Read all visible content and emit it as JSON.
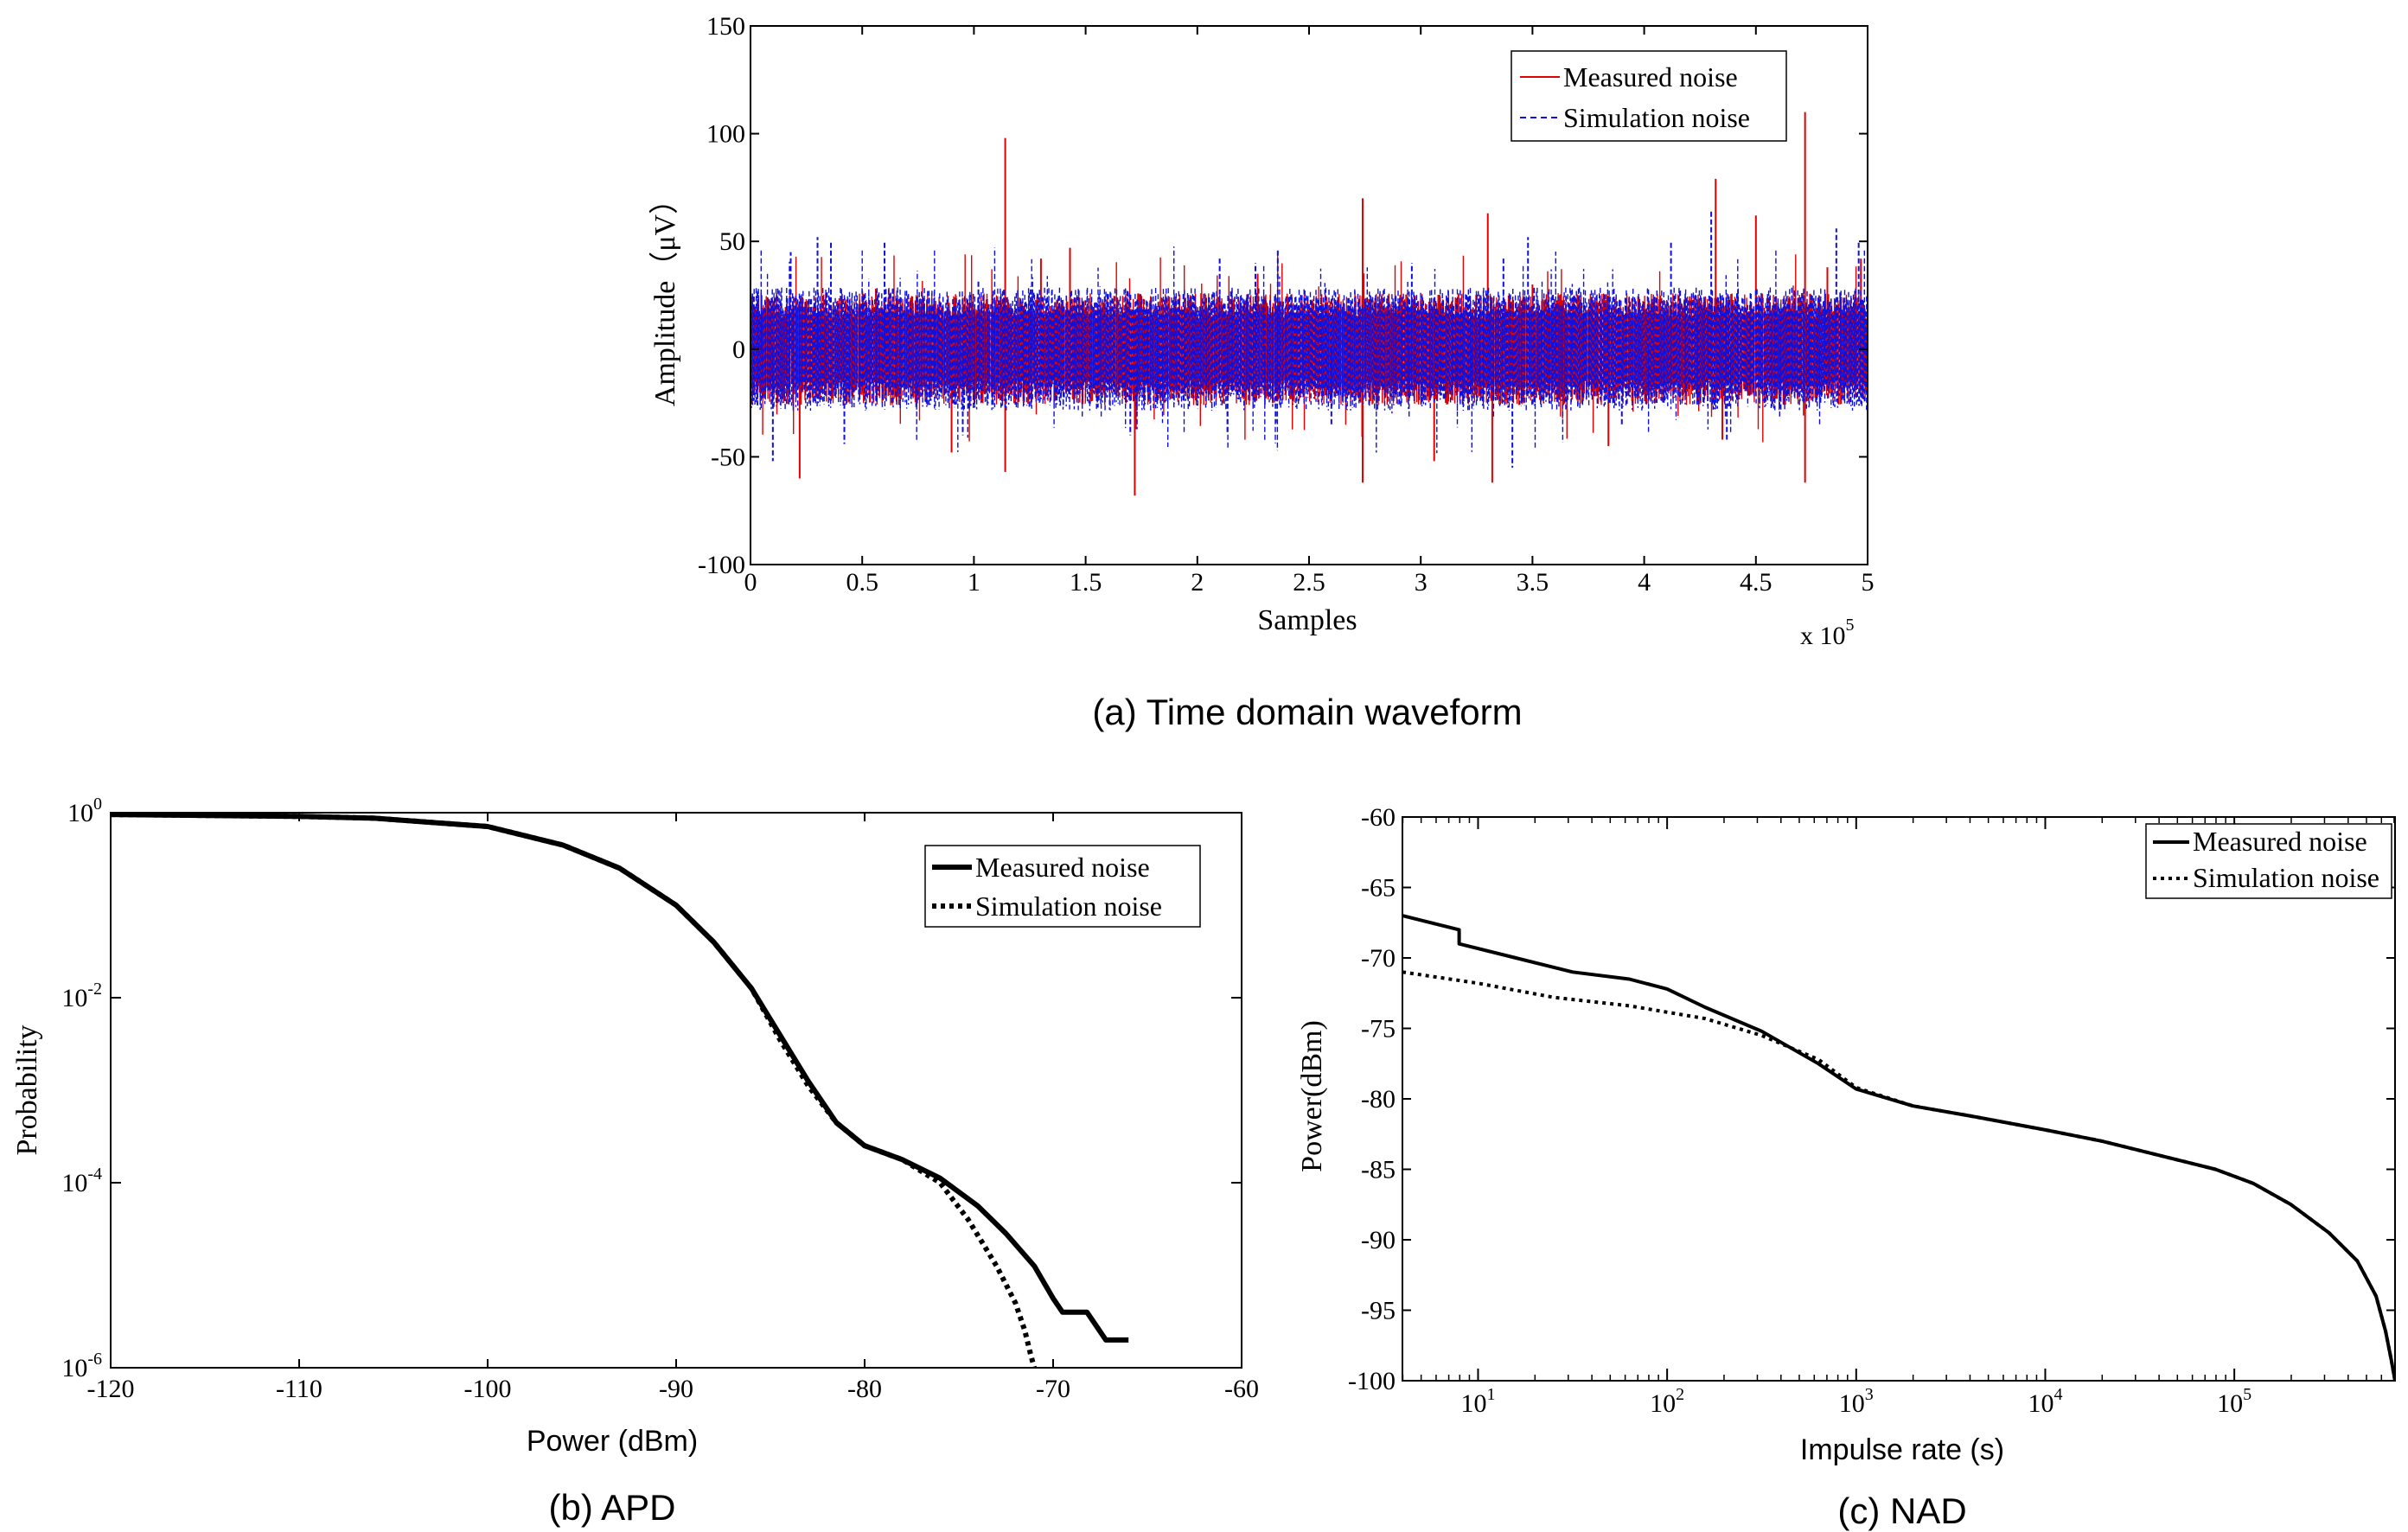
{
  "figure": {
    "captions": [
      "(a) Time domain waveform",
      "(b) APD",
      "(c) NAD"
    ]
  },
  "chart_data": [
    {
      "id": "a",
      "type": "line",
      "title": "(a) Time domain waveform",
      "xlabel": "Samples",
      "ylabel": "Amplitude（μV）",
      "x_multiplier": "x 10",
      "x_multiplier_exp": "5",
      "xlim": [
        0,
        5
      ],
      "ylim": [
        -100,
        150
      ],
      "xticks": [
        0,
        0.5,
        1,
        1.5,
        2,
        2.5,
        3,
        3.5,
        4,
        4.5,
        5
      ],
      "xtick_labels": [
        "0",
        "0.5",
        "1",
        "1.5",
        "2",
        "2.5",
        "3",
        "3.5",
        "4",
        "4.5",
        "5"
      ],
      "yticks": [
        -100,
        -50,
        0,
        50,
        100,
        150
      ],
      "ytick_labels": [
        "-100",
        "-50",
        "0",
        "50",
        "100",
        "150"
      ],
      "legend": "top-right",
      "series": [
        {
          "name": "Measured noise",
          "color": "#e00000",
          "style": "solid",
          "noise_band": 20,
          "spikes": [
            [
              0.22,
              -60
            ],
            [
              0.9,
              -48
            ],
            [
              1.14,
              98
            ],
            [
              1.14,
              -57
            ],
            [
              1.3,
              42
            ],
            [
              1.43,
              47
            ],
            [
              1.72,
              -68
            ],
            [
              2.27,
              35
            ],
            [
              2.74,
              70
            ],
            [
              2.74,
              -62
            ],
            [
              3.06,
              -52
            ],
            [
              3.3,
              63
            ],
            [
              3.32,
              -62
            ],
            [
              3.5,
              30
            ],
            [
              3.84,
              -45
            ],
            [
              4.32,
              79
            ],
            [
              4.35,
              -42
            ],
            [
              4.5,
              62
            ],
            [
              4.72,
              110
            ],
            [
              4.72,
              -62
            ],
            [
              4.82,
              38
            ],
            [
              4.97,
              42
            ]
          ]
        },
        {
          "name": "Simulation noise",
          "color": "#1010dd",
          "style": "dashed",
          "noise_band": 22,
          "spikes": [
            [
              0.1,
              -52
            ],
            [
              0.18,
              45
            ],
            [
              0.3,
              52
            ],
            [
              0.36,
              50
            ],
            [
              0.42,
              -44
            ],
            [
              0.6,
              50
            ],
            [
              0.95,
              -40
            ],
            [
              1.02,
              32
            ],
            [
              1.7,
              -40
            ],
            [
              2.1,
              42
            ],
            [
              2.26,
              40
            ],
            [
              2.36,
              46
            ],
            [
              2.6,
              -35
            ],
            [
              2.96,
              40
            ],
            [
              3.37,
              42
            ],
            [
              3.41,
              -55
            ],
            [
              3.48,
              52
            ],
            [
              3.9,
              -35
            ],
            [
              4.12,
              50
            ],
            [
              4.3,
              65
            ],
            [
              4.37,
              -42
            ],
            [
              4.86,
              56
            ],
            [
              4.96,
              50
            ]
          ]
        }
      ]
    },
    {
      "id": "b",
      "type": "line",
      "title": "(b) APD",
      "xlabel": "Power (dBm)",
      "ylabel": "Probability",
      "xlim": [
        -120,
        -60
      ],
      "y_scale": "log",
      "ylim_exp": [
        -6,
        0
      ],
      "xticks": [
        -120,
        -110,
        -100,
        -90,
        -80,
        -70,
        -60
      ],
      "xtick_labels": [
        "-120",
        "-110",
        "-100",
        "-90",
        "-80",
        "-70",
        "-60"
      ],
      "ytick_exps": [
        0,
        -2,
        -4,
        -6
      ],
      "ytick_base": "10",
      "ytick_exp_labels": [
        "0",
        "-2",
        "-4",
        "-6"
      ],
      "legend": "top-right",
      "series": [
        {
          "name": "Measured noise",
          "style": "solid-thick",
          "color": "#000000",
          "x": [
            -120,
            -110,
            -106,
            -100,
            -96,
            -93,
            -90,
            -88,
            -86,
            -84.5,
            -83,
            -81.5,
            -80,
            -78,
            -76,
            -74,
            -72.5,
            -71,
            -70,
            -69.5,
            -68.2,
            -67.2,
            -66
          ],
          "y_exp": [
            -0.02,
            -0.04,
            -0.06,
            -0.15,
            -0.35,
            -0.6,
            -1.0,
            -1.4,
            -1.9,
            -2.4,
            -2.9,
            -3.35,
            -3.6,
            -3.75,
            -3.95,
            -4.25,
            -4.55,
            -4.9,
            -5.25,
            -5.4,
            -5.4,
            -5.7,
            -5.7
          ]
        },
        {
          "name": "Simulation noise",
          "style": "dotted",
          "color": "#000000",
          "x": [
            -120,
            -110,
            -106,
            -100,
            -96,
            -93,
            -90,
            -88,
            -86,
            -84.5,
            -83,
            -81.5,
            -80,
            -78,
            -76,
            -74.5,
            -73,
            -72,
            -71.5,
            -71.2,
            -71
          ],
          "y_exp": [
            -0.02,
            -0.04,
            -0.06,
            -0.15,
            -0.35,
            -0.6,
            -1.0,
            -1.4,
            -1.9,
            -2.45,
            -2.95,
            -3.35,
            -3.6,
            -3.75,
            -4.0,
            -4.4,
            -4.9,
            -5.3,
            -5.6,
            -5.85,
            -6.0
          ]
        }
      ]
    },
    {
      "id": "c",
      "type": "line",
      "title": "(c) NAD",
      "xlabel": "Impulse rate (s)",
      "ylabel": "Power(dBm)",
      "x_scale": "log",
      "xlim_exp": [
        0.6,
        5.85
      ],
      "ylim": [
        -100,
        -60
      ],
      "xtick_exps": [
        1,
        2,
        3,
        4,
        5
      ],
      "xtick_base": "10",
      "xtick_exp_labels": [
        "1",
        "2",
        "3",
        "4",
        "5"
      ],
      "yticks": [
        -60,
        -65,
        -70,
        -75,
        -80,
        -85,
        -90,
        -95,
        -100
      ],
      "ytick_labels": [
        "-60",
        "-65",
        "-70",
        "-75",
        "-80",
        "-85",
        "-90",
        "-95",
        "-100"
      ],
      "legend": "top-right",
      "series": [
        {
          "name": "Measured noise",
          "style": "solid",
          "color": "#000000",
          "x_exp": [
            0.6,
            0.9,
            0.9,
            1.2,
            1.5,
            1.8,
            2.0,
            2.2,
            2.5,
            2.8,
            3.0,
            3.3,
            3.6,
            4.0,
            4.3,
            4.6,
            4.9,
            5.1,
            5.3,
            5.5,
            5.65,
            5.75,
            5.8,
            5.83,
            5.85
          ],
          "y": [
            -67,
            -68,
            -69,
            -70,
            -71,
            -71.5,
            -72.2,
            -73.5,
            -75.2,
            -77.5,
            -79.3,
            -80.5,
            -81.2,
            -82.2,
            -83,
            -84,
            -85,
            -86,
            -87.5,
            -89.5,
            -91.5,
            -94,
            -96.5,
            -98.5,
            -100
          ]
        },
        {
          "name": "Simulation noise",
          "style": "dotted",
          "color": "#000000",
          "x_exp": [
            0.6,
            1.0,
            1.4,
            1.8,
            2.2,
            2.5,
            2.8,
            3.0,
            3.3,
            3.6,
            4.0,
            4.3,
            4.6,
            4.9,
            5.1,
            5.3,
            5.5,
            5.65,
            5.75,
            5.8,
            5.83,
            5.85
          ],
          "y": [
            -71,
            -71.8,
            -72.8,
            -73.4,
            -74.3,
            -75.5,
            -77.2,
            -79.2,
            -80.5,
            -81.2,
            -82.2,
            -83,
            -84,
            -85,
            -86,
            -87.5,
            -89.5,
            -91.5,
            -94,
            -96.5,
            -98.5,
            -100
          ]
        }
      ]
    }
  ]
}
